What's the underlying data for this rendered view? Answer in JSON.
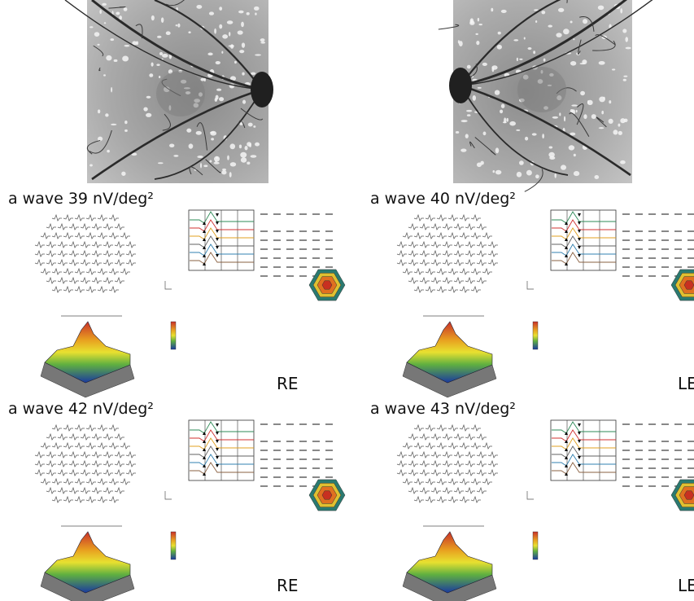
{
  "panels": [
    {
      "caption": "a wave 39 nV/deg²",
      "eye": "RE"
    },
    {
      "caption": "a wave 40 nV/deg²",
      "eye": "LE"
    },
    {
      "caption": "a wave 42 nV/deg²",
      "eye": "RE"
    },
    {
      "caption": "a wave 43 nV/deg²",
      "eye": "LE"
    }
  ]
}
